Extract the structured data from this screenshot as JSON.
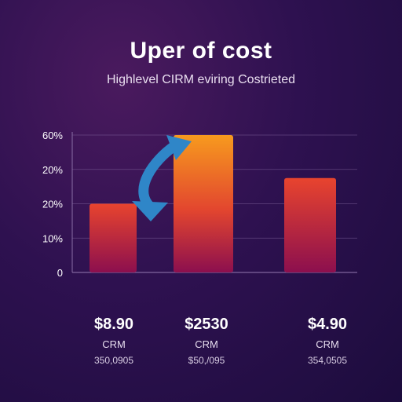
{
  "header": {
    "title": "Uper of cost",
    "subtitle": "Highlevel CIRM eviring Costrieted"
  },
  "chart_data": {
    "type": "bar",
    "categories": [
      "$8.90",
      "$2530",
      "$4.90"
    ],
    "values": [
      2,
      4,
      2.75
    ],
    "ytick_labels": [
      "0",
      "10%",
      "20%",
      "20%",
      "60%"
    ],
    "ylim": [
      0,
      4
    ],
    "grid": true,
    "colors": {
      "bar_top": "#e8442e",
      "bar_bottom": "#8c0f4e",
      "bar_peak_top": "#f79a1e",
      "arrow": "#2f86c8",
      "grid": "#8a6fa6"
    },
    "annotations": [
      {
        "type": "curved-arrow",
        "from": "$8.90",
        "to": "$2530"
      }
    ]
  },
  "columns": [
    {
      "amount": "$8.90",
      "label": "CRM",
      "sub": "350,0905"
    },
    {
      "amount": "$2530",
      "label": "CRM",
      "sub": "$50,/095"
    },
    {
      "amount": "$4.90",
      "label": "CRM",
      "sub": "354,0505"
    }
  ]
}
